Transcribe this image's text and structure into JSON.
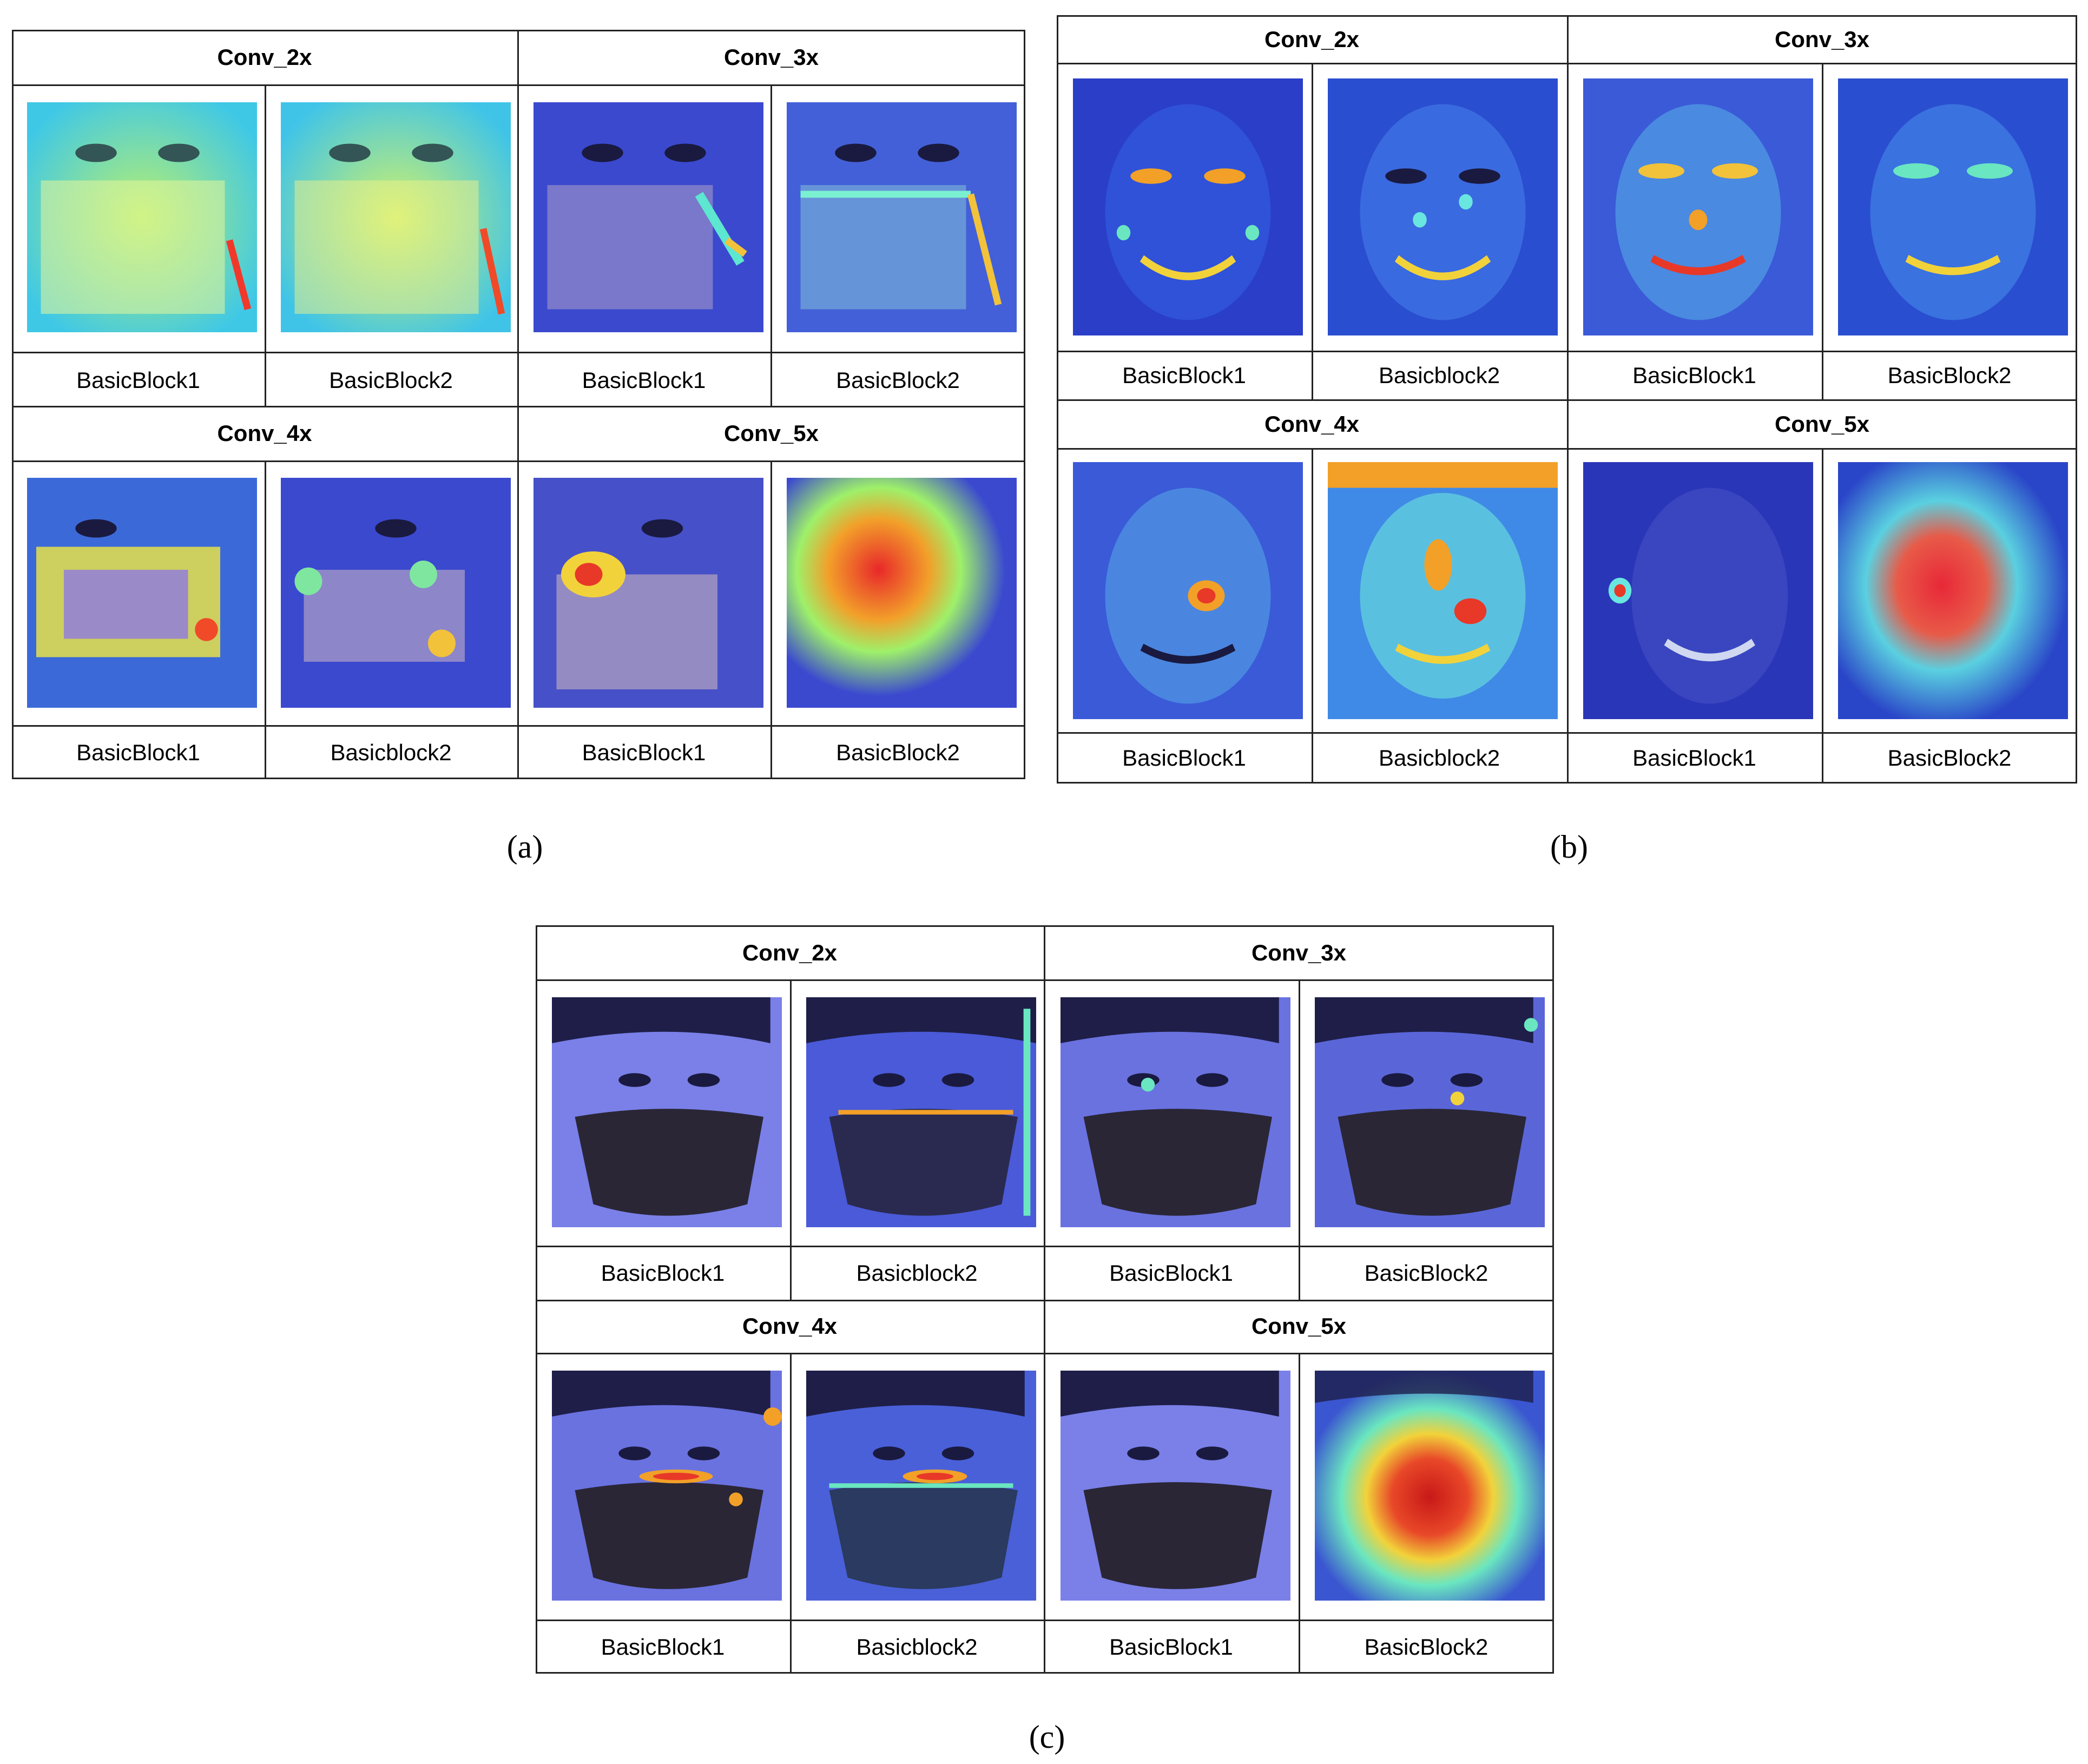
{
  "panels": [
    {
      "id": "a",
      "caption": "(a)",
      "rows": [
        {
          "titles": [
            "Conv_2x",
            "Conv_3x"
          ],
          "labels": [
            "BasicBlock1",
            "BasicBlock2",
            "BasicBlock1",
            "BasicBlock2"
          ]
        },
        {
          "titles": [
            "Conv_4x",
            "Conv_5x"
          ],
          "labels": [
            "BasicBlock1",
            "Basicblock2",
            "BasicBlock1",
            "BasicBlock2"
          ]
        }
      ]
    },
    {
      "id": "b",
      "caption": "(b)",
      "rows": [
        {
          "titles": [
            "Conv_2x",
            "Conv_3x"
          ],
          "labels": [
            "BasicBlock1",
            "Basicblock2",
            "BasicBlock1",
            "BasicBlock2"
          ]
        },
        {
          "titles": [
            "Conv_4x",
            "Conv_5x"
          ],
          "labels": [
            "BasicBlock1",
            "Basicblock2",
            "BasicBlock1",
            "BasicBlock2"
          ]
        }
      ]
    },
    {
      "id": "c",
      "caption": "(c)",
      "rows": [
        {
          "titles": [
            "Conv_2x",
            "Conv_3x"
          ],
          "labels": [
            "BasicBlock1",
            "Basicblock2",
            "BasicBlock1",
            "BasicBlock2"
          ]
        },
        {
          "titles": [
            "Conv_4x",
            "Conv_5x"
          ],
          "labels": [
            "BasicBlock1",
            "Basicblock2",
            "BasicBlock1",
            "BasicBlock2"
          ]
        }
      ]
    }
  ]
}
